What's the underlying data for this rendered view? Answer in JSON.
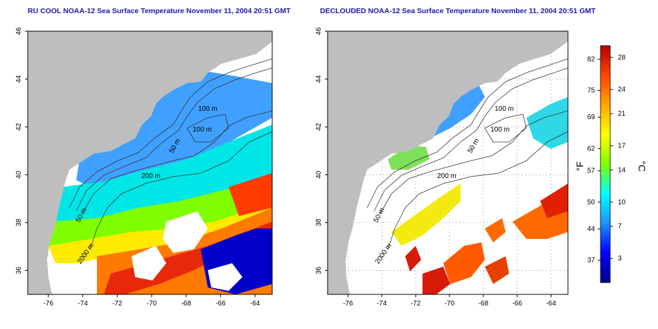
{
  "colors": {
    "land": "#bebebe",
    "ocean_clear": "#ffffff",
    "cloud": "#ffffff",
    "contour": "#333333",
    "grid": "#9a9a9a",
    "title": "#1a1aa8",
    "colorbar_stops": [
      "#00008b",
      "#0000ff",
      "#1e90ff",
      "#00ffff",
      "#7fff00",
      "#ffff00",
      "#ffa500",
      "#ff4500",
      "#b40000"
    ]
  },
  "panels": [
    {
      "title": "RU COOL NOAA-12 Sea Surface Temperature November 11, 2004 20:51 GMT",
      "x_ticks": [
        "-76",
        "-74",
        "-72",
        "-70",
        "-68",
        "-66",
        "-64"
      ],
      "y_ticks": [
        "36",
        "38",
        "40",
        "42",
        "44",
        "46"
      ],
      "contour_labels": [
        "100 m",
        "100 m",
        "50 m",
        "200 m",
        "50 m",
        "2000 m"
      ]
    },
    {
      "title": "DECLOUDED NOAA-12 Sea Surface Temperature November 11, 2004 20:51 GMT",
      "x_ticks": [
        "-76",
        "-74",
        "-72",
        "-70",
        "-68",
        "-66",
        "-64"
      ],
      "y_ticks": [
        "36",
        "38",
        "40",
        "42",
        "44",
        "46"
      ],
      "contour_labels": [
        "100 m",
        "100 m",
        "50 m",
        "200 m",
        "50 m",
        "2000 m"
      ]
    }
  ],
  "colorbar": {
    "fahrenheit_label": "°F",
    "celsius_label": "°C",
    "fahrenheit_ticks": [
      "82",
      "75",
      "69",
      "62",
      "57",
      "50",
      "44",
      "37"
    ],
    "celsius_ticks": [
      "28",
      "24",
      "21",
      "17",
      "14",
      "10",
      "7",
      "3"
    ]
  }
}
